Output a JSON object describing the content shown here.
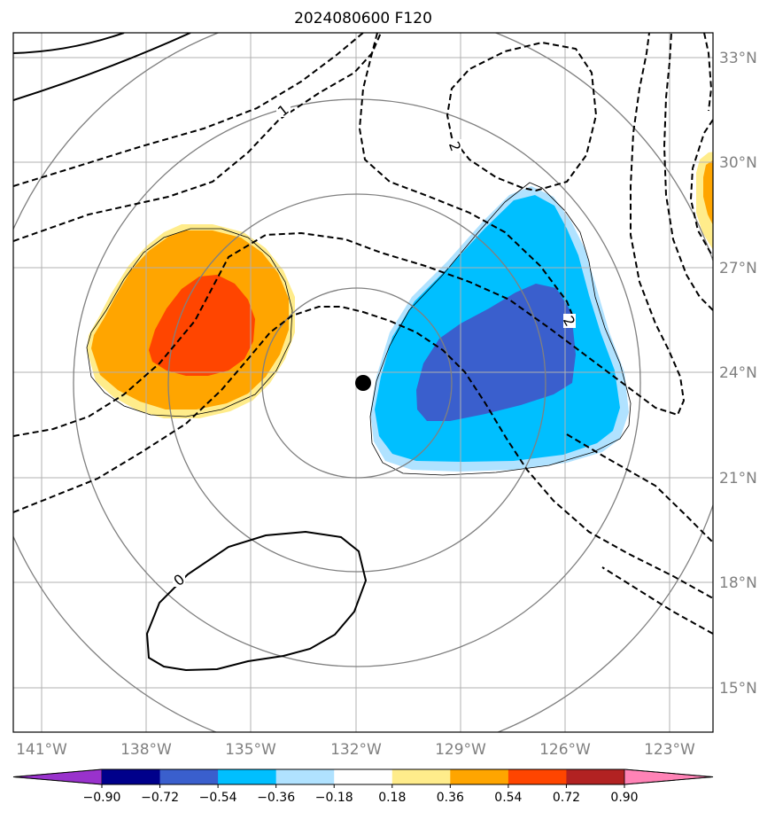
{
  "map": {
    "title": "2024080600 F120",
    "lon_ticks": [
      "141°W",
      "138°W",
      "135°W",
      "132°W",
      "129°W",
      "126°W",
      "123°W"
    ],
    "lat_ticks": [
      "33°N",
      "30°N",
      "27°N",
      "24°N",
      "21°N",
      "18°N",
      "15°N"
    ],
    "storm_center": {
      "lon": -131.8,
      "lat": 23.7
    },
    "contour_labels": [
      "1",
      "2",
      "2",
      "0"
    ]
  },
  "colorbar": {
    "ticks": [
      "−0.90",
      "−0.72",
      "−0.54",
      "−0.36",
      "−0.18",
      "0.18",
      "0.36",
      "0.54",
      "0.72",
      "0.90"
    ],
    "colors": [
      "#9932cc",
      "#00008b",
      "#3a5fcd",
      "#00bfff",
      "#b0e2ff",
      "#ffffff",
      "#ffec8b",
      "#ffa500",
      "#ff4500",
      "#b22222",
      "#ff83b6"
    ]
  }
}
